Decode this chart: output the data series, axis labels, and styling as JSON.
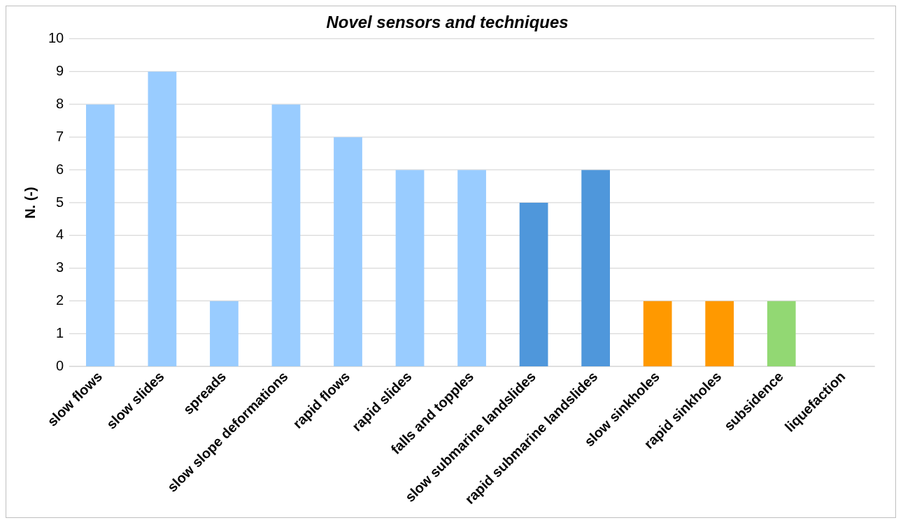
{
  "chart_data": {
    "type": "bar",
    "title": "Novel sensors and techniques",
    "ylabel": "N. (-)",
    "categories": [
      "slow flows",
      "slow slides",
      "spreads",
      "slow slope deformations",
      "rapid flows",
      "rapid slides",
      "falls and topples",
      "slow submarine landslides",
      "rapid submarine landslides",
      "slow sinkholes",
      "rapid sinkholes",
      "subsidence",
      "liquefaction"
    ],
    "values": [
      8,
      9,
      2,
      8,
      7,
      6,
      6,
      5,
      6,
      2,
      2,
      2,
      0
    ],
    "colors": [
      "#99ccff",
      "#99ccff",
      "#99ccff",
      "#99ccff",
      "#99ccff",
      "#99ccff",
      "#99ccff",
      "#4f97db",
      "#4f97db",
      "#ff9900",
      "#ff9900",
      "#92d873",
      "#92d873"
    ],
    "ylim": [
      0,
      10
    ],
    "yticks": [
      0,
      1,
      2,
      3,
      4,
      5,
      6,
      7,
      8,
      9,
      10
    ],
    "grid": "y",
    "legend": false
  }
}
